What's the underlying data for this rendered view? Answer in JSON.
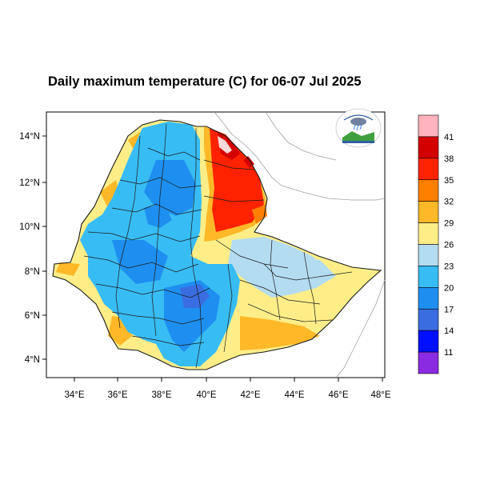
{
  "title": "Daily maximum temperature (C) for 06-07 Jul 2025",
  "x_axis": {
    "ticks": [
      "34°E",
      "36°E",
      "38°E",
      "40°E",
      "42°E",
      "44°E",
      "46°E",
      "48°E"
    ]
  },
  "y_axis": {
    "ticks": [
      "14°N",
      "12°N",
      "10°N",
      "8°N",
      "6°N",
      "4°N"
    ]
  },
  "colorbar": {
    "labels": [
      "41",
      "38",
      "35",
      "32",
      "29",
      "26",
      "23",
      "20",
      "17",
      "14",
      "11"
    ],
    "colors": [
      "#ffb3bd",
      "#d40000",
      "#ff2200",
      "#ff7f00",
      "#ffb828",
      "#ffee88",
      "#b4dcf0",
      "#38bcf4",
      "#1e8ff0",
      "#3a6ee0",
      "#0010ff",
      "#8a2be2"
    ]
  },
  "logo": {
    "name": "ethiopian-meteorology-logo"
  }
}
